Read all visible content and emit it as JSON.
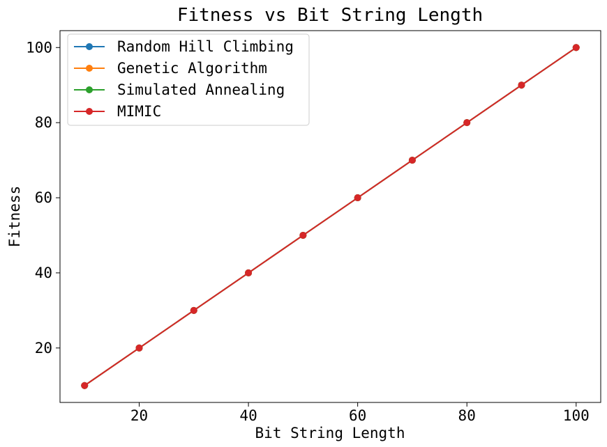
{
  "chart_data": {
    "type": "line",
    "title": "Fitness vs Bit String Length",
    "xlabel": "Bit String Length",
    "ylabel": "Fitness",
    "x": [
      10,
      20,
      30,
      40,
      50,
      60,
      70,
      80,
      90,
      100
    ],
    "xlim": [
      5.5,
      104.5
    ],
    "ylim": [
      5.5,
      104.5
    ],
    "xticks": [
      20,
      40,
      60,
      80,
      100
    ],
    "yticks": [
      20,
      40,
      60,
      80,
      100
    ],
    "grid": false,
    "legend_position": "top-left",
    "series": [
      {
        "name": "Random Hill Climbing",
        "color": "#1f77b4",
        "marker": "circle",
        "values": [
          10,
          20,
          30,
          40,
          50,
          60,
          70,
          80,
          90,
          100
        ]
      },
      {
        "name": "Genetic Algorithm",
        "color": "#ff7f0e",
        "marker": "circle",
        "values": [
          10,
          20,
          30,
          40,
          50,
          60,
          70,
          80,
          90,
          100
        ]
      },
      {
        "name": "Simulated Annealing",
        "color": "#2ca02c",
        "marker": "circle",
        "values": [
          10,
          20,
          30,
          40,
          50,
          60,
          70,
          80,
          90,
          100
        ]
      },
      {
        "name": "MIMIC",
        "color": "#d62728",
        "marker": "circle",
        "values": [
          10,
          20,
          30,
          40,
          50,
          60,
          70,
          80,
          90,
          100
        ]
      }
    ]
  }
}
